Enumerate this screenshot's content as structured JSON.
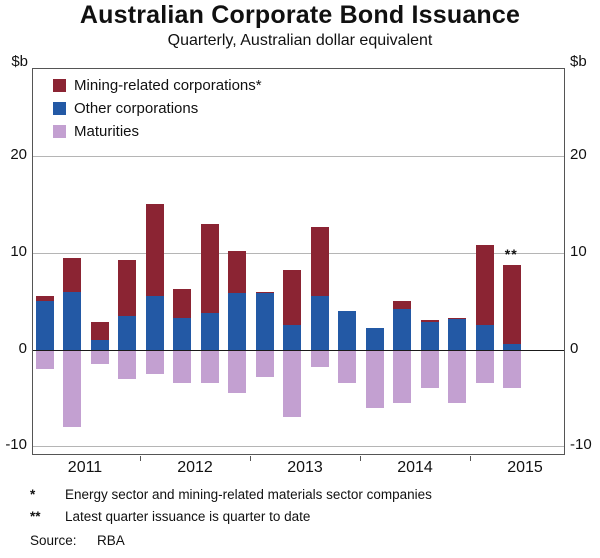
{
  "title": "Australian Corporate Bond Issuance",
  "subtitle": "Quarterly, Australian dollar equivalent",
  "axis": {
    "unit": "$b"
  },
  "chart_data": {
    "type": "bar",
    "stacked": true,
    "title": "Australian Corporate Bond Issuance",
    "subtitle": "Quarterly, Australian dollar equivalent",
    "ylabel": "$b",
    "ylim": [
      -11,
      29
    ],
    "yticks": [
      -10,
      0,
      10,
      20
    ],
    "grid": true,
    "legend_position": "top-left",
    "x": [
      "2011 Q1",
      "2011 Q2",
      "2011 Q3",
      "2011 Q4",
      "2012 Q1",
      "2012 Q2",
      "2012 Q3",
      "2012 Q4",
      "2013 Q1",
      "2013 Q2",
      "2013 Q3",
      "2013 Q4",
      "2014 Q1",
      "2014 Q2",
      "2014 Q3",
      "2014 Q4",
      "2015 Q1",
      "2015 Q2"
    ],
    "series": [
      {
        "name": "Mining-related corporations*",
        "color": "#8b2433",
        "values": [
          0.5,
          3.5,
          1.8,
          5.8,
          9.5,
          3.0,
          9.2,
          4.4,
          0.2,
          5.7,
          7.2,
          0.0,
          0.0,
          0.8,
          0.3,
          0.1,
          8.3,
          8.1
        ]
      },
      {
        "name": "Other corporations",
        "color": "#2359a5",
        "values": [
          5.0,
          6.0,
          1.0,
          3.5,
          5.5,
          3.3,
          3.8,
          5.8,
          5.8,
          2.5,
          5.5,
          4.0,
          2.2,
          4.2,
          2.8,
          3.2,
          2.5,
          0.6
        ]
      },
      {
        "name": "Maturities",
        "color": "#c3a0d1",
        "values": [
          -2.0,
          -8.0,
          -1.5,
          -3.0,
          -2.5,
          -3.5,
          -3.5,
          -4.5,
          -2.8,
          -7.0,
          -1.8,
          -3.5,
          -6.0,
          -5.5,
          -4.0,
          -5.5,
          -3.5,
          -4.0
        ]
      }
    ],
    "year_labels": [
      {
        "label": "2011",
        "center_slot": 1.5
      },
      {
        "label": "2012",
        "center_slot": 5.5
      },
      {
        "label": "2013",
        "center_slot": 9.5
      },
      {
        "label": "2014",
        "center_slot": 13.5
      },
      {
        "label": "2015",
        "center_slot": 17.5
      }
    ],
    "annotation": {
      "text": "**",
      "slot": 17,
      "above_value": 8.7
    }
  },
  "footnotes": [
    {
      "symbol": "*",
      "text": "Energy sector and mining-related materials sector companies"
    },
    {
      "symbol": "**",
      "text": "Latest quarter issuance is quarter to date"
    }
  ],
  "source": {
    "label": "Source:",
    "value": "RBA"
  }
}
